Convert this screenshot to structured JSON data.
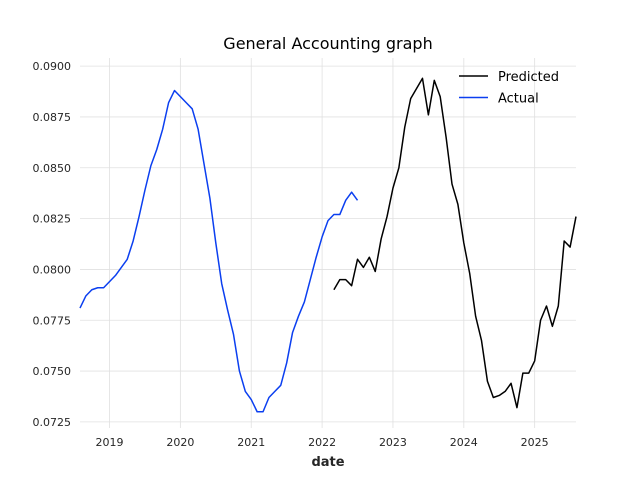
{
  "chart_data": {
    "type": "line",
    "title": "General Accounting graph",
    "xlabel": "date",
    "ylabel": "",
    "x_is_date": true,
    "xlim": [
      "2018-08-01",
      "2025-08-01"
    ],
    "ylim": [
      0.0722,
      0.0904
    ],
    "x_ticks": [
      "2019",
      "2020",
      "2021",
      "2022",
      "2023",
      "2024",
      "2025"
    ],
    "y_ticks": [
      "0.0725",
      "0.0750",
      "0.0775",
      "0.0800",
      "0.0825",
      "0.0850",
      "0.0875",
      "0.0900"
    ],
    "grid": true,
    "legend_position": "top-right",
    "series": [
      {
        "name": "Predicted",
        "color": "#000000",
        "x": [
          "2022-03",
          "2022-04",
          "2022-05",
          "2022-06",
          "2022-07",
          "2022-08",
          "2022-09",
          "2022-10",
          "2022-11",
          "2022-12",
          "2023-01",
          "2023-02",
          "2023-03",
          "2023-04",
          "2023-05",
          "2023-06",
          "2023-07",
          "2023-08",
          "2023-09",
          "2023-10",
          "2023-11",
          "2023-12",
          "2024-01",
          "2024-02",
          "2024-03",
          "2024-04",
          "2024-05",
          "2024-06",
          "2024-07",
          "2024-08",
          "2024-09",
          "2024-10",
          "2024-11",
          "2024-12",
          "2025-01",
          "2025-02",
          "2025-03",
          "2025-04",
          "2025-05",
          "2025-06",
          "2025-07",
          "2025-08"
        ],
        "y": [
          0.079,
          0.0795,
          0.0795,
          0.0792,
          0.0805,
          0.0801,
          0.0806,
          0.0799,
          0.0815,
          0.0826,
          0.084,
          0.085,
          0.087,
          0.0884,
          0.0889,
          0.0894,
          0.0876,
          0.0893,
          0.0885,
          0.0865,
          0.0842,
          0.0832,
          0.0813,
          0.0798,
          0.0777,
          0.0765,
          0.0745,
          0.0737,
          0.0738,
          0.074,
          0.0744,
          0.0732,
          0.0749,
          0.0749,
          0.0755,
          0.0775,
          0.0782,
          0.0772,
          0.0782,
          0.0814,
          0.0811,
          0.0826
        ]
      },
      {
        "name": "Actual",
        "color": "#0b3ff0",
        "x": [
          "2018-08",
          "2018-09",
          "2018-10",
          "2018-11",
          "2018-12",
          "2019-01",
          "2019-02",
          "2019-03",
          "2019-04",
          "2019-05",
          "2019-06",
          "2019-07",
          "2019-08",
          "2019-09",
          "2019-10",
          "2019-11",
          "2019-12",
          "2020-01",
          "2020-02",
          "2020-03",
          "2020-04",
          "2020-05",
          "2020-06",
          "2020-07",
          "2020-08",
          "2020-09",
          "2020-10",
          "2020-11",
          "2020-12",
          "2021-01",
          "2021-02",
          "2021-03",
          "2021-04",
          "2021-05",
          "2021-06",
          "2021-07",
          "2021-08",
          "2021-09",
          "2021-10",
          "2021-11",
          "2021-12",
          "2022-01",
          "2022-02",
          "2022-03",
          "2022-04",
          "2022-05",
          "2022-06",
          "2022-07"
        ],
        "y": [
          0.0781,
          0.0787,
          0.079,
          0.0791,
          0.0791,
          0.0794,
          0.0797,
          0.0801,
          0.0805,
          0.0814,
          0.0826,
          0.0839,
          0.0851,
          0.0859,
          0.0869,
          0.0882,
          0.0888,
          0.0885,
          0.0882,
          0.0879,
          0.0869,
          0.0852,
          0.0835,
          0.0813,
          0.0793,
          0.078,
          0.0768,
          0.075,
          0.074,
          0.0736,
          0.073,
          0.073,
          0.0737,
          0.074,
          0.0743,
          0.0754,
          0.0769,
          0.0777,
          0.0784,
          0.0795,
          0.0806,
          0.0816,
          0.0824,
          0.0827,
          0.0827,
          0.0834,
          0.0838,
          0.0834
        ]
      }
    ]
  }
}
